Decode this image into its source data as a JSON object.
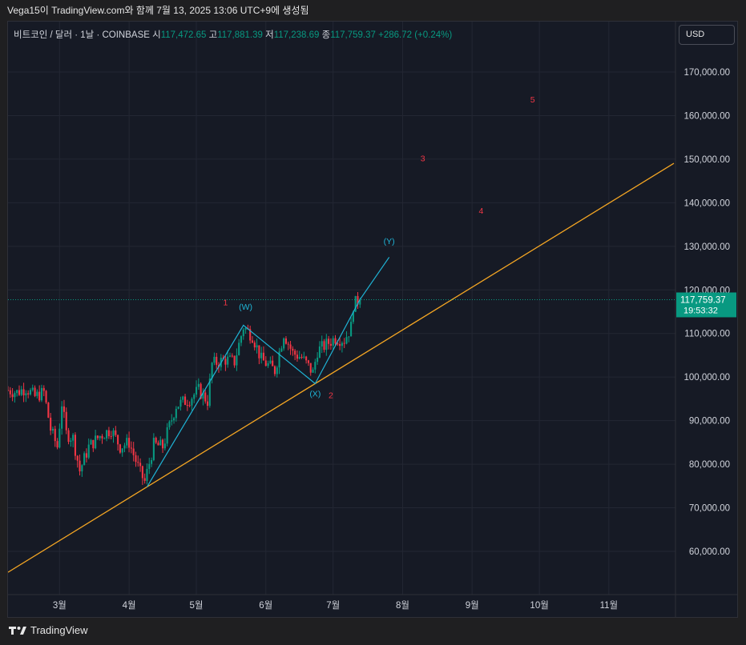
{
  "header": {
    "caption": "Vega15이 TradingView.com와 함께 7월 13, 2025 13:06 UTC+9에 생성됨"
  },
  "legend": {
    "symbol": "비트코인 / 달러 · 1날 · COINBASE",
    "open_label": "시",
    "open": "117,472.65",
    "high_label": "고",
    "high": "117,881.39",
    "low_label": "저",
    "low": "117,238.69",
    "close_label": "종",
    "close": "117,759.37",
    "change": "+286.72 (+0.24%)"
  },
  "currency_button": "USD",
  "footer": {
    "brand": "TradingView",
    "logo_icon": "tradingview-logo-icon"
  },
  "colors": {
    "up": "#089981",
    "down": "#f23645",
    "trendline": "#f5a623",
    "wave_line": "#1fb4d6",
    "wave_label_teal": "#1fb4d6",
    "wave_label_red": "#f23645",
    "grid": "#232733",
    "price_tag": "#089981"
  },
  "chart_data": {
    "type": "candlestick",
    "symbol": "BTC/USD",
    "interval": "1D",
    "exchange": "COINBASE",
    "x_axis_months": [
      "3월",
      "4월",
      "5월",
      "6월",
      "7월",
      "8월",
      "9월",
      "10월",
      "11월"
    ],
    "y_axis_ticks": [
      "60,000.00",
      "70,000.00",
      "80,000.00",
      "90,000.00",
      "100,000.00",
      "110,000.00",
      "120,000.00",
      "130,000.00",
      "140,000.00",
      "150,000.00",
      "160,000.00",
      "170,000.00"
    ],
    "ylim": [
      51000,
      180000
    ],
    "xlim": [
      "2025-02-06",
      "2025-11-30"
    ],
    "last_price": "117,759.37",
    "countdown": "19:53:32",
    "price_path": [
      [
        "2025-02-06",
        97000
      ],
      [
        "2025-02-10",
        96500
      ],
      [
        "2025-02-14",
        97500
      ],
      [
        "2025-02-18",
        95500
      ],
      [
        "2025-02-22",
        96500
      ],
      [
        "2025-02-25",
        88000
      ],
      [
        "2025-02-28",
        84000
      ],
      [
        "2025-03-02",
        94000
      ],
      [
        "2025-03-04",
        87000
      ],
      [
        "2025-03-07",
        86000
      ],
      [
        "2025-03-10",
        78500
      ],
      [
        "2025-03-14",
        84000
      ],
      [
        "2025-03-19",
        86500
      ],
      [
        "2025-03-24",
        88000
      ],
      [
        "2025-03-28",
        84000
      ],
      [
        "2025-04-01",
        85000
      ],
      [
        "2025-04-06",
        78000
      ],
      [
        "2025-04-08",
        76000
      ],
      [
        "2025-04-12",
        84500
      ],
      [
        "2025-04-16",
        84000
      ],
      [
        "2025-04-22",
        93500
      ],
      [
        "2025-04-28",
        95000
      ],
      [
        "2025-05-02",
        97000
      ],
      [
        "2025-05-06",
        94500
      ],
      [
        "2025-05-08",
        103000
      ],
      [
        "2025-05-14",
        104000
      ],
      [
        "2025-05-18",
        103500
      ],
      [
        "2025-05-22",
        111500
      ],
      [
        "2025-05-26",
        109500
      ],
      [
        "2025-05-30",
        104000
      ],
      [
        "2025-06-05",
        101500
      ],
      [
        "2025-06-09",
        110000
      ],
      [
        "2025-06-13",
        105500
      ],
      [
        "2025-06-17",
        104500
      ],
      [
        "2025-06-22",
        101000
      ],
      [
        "2025-06-24",
        106000
      ],
      [
        "2025-06-28",
        107500
      ],
      [
        "2025-07-02",
        109000
      ],
      [
        "2025-07-06",
        108500
      ],
      [
        "2025-07-09",
        111500
      ],
      [
        "2025-07-10",
        116500
      ],
      [
        "2025-07-12",
        117500
      ],
      [
        "2025-07-13",
        117759
      ]
    ],
    "trendline": {
      "points": [
        [
          "2025-04-09",
          74800
        ],
        [
          "2025-06-23",
          98500
        ]
      ]
    },
    "wave_path": [
      [
        "2025-04-09",
        74800
      ],
      [
        "2025-05-22",
        111900
      ],
      [
        "2025-06-23",
        98500
      ],
      [
        "2025-07-13",
        117800
      ],
      [
        "2025-07-26",
        127500
      ]
    ],
    "wave_labels": [
      {
        "text": "(W)",
        "date": "2025-05-23",
        "price": 115500,
        "color": "teal"
      },
      {
        "text": "(X)",
        "date": "2025-06-23",
        "price": 95500,
        "color": "teal"
      },
      {
        "text": "(Y)",
        "date": "2025-07-26",
        "price": 130500,
        "color": "teal"
      },
      {
        "text": "1",
        "date": "2025-05-14",
        "price": 116500,
        "color": "red"
      },
      {
        "text": "2",
        "date": "2025-06-30",
        "price": 95200,
        "color": "red"
      },
      {
        "text": "3",
        "date": "2025-08-10",
        "price": 149500,
        "color": "red"
      },
      {
        "text": "4",
        "date": "2025-09-05",
        "price": 137500,
        "color": "red"
      },
      {
        "text": "5",
        "date": "2025-09-28",
        "price": 163000,
        "color": "red"
      }
    ]
  }
}
